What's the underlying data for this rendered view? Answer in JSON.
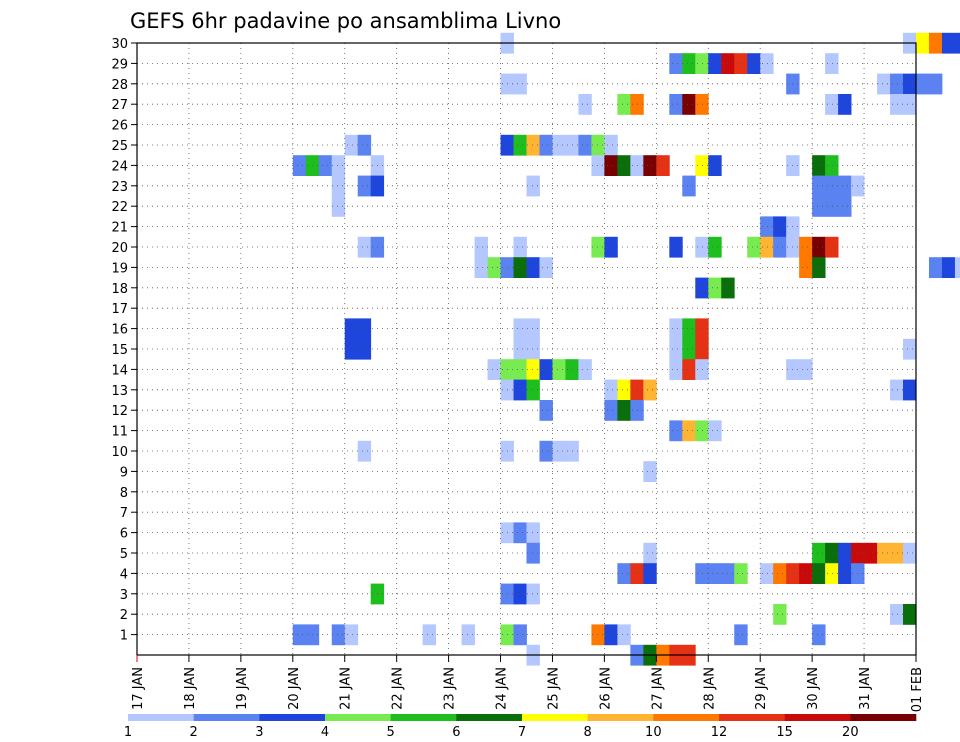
{
  "chart_data": {
    "type": "heatmap",
    "title": "GEFS 6hr padavine po ansamblima Livno",
    "x_ticks": [
      "17 JAN",
      "18 JAN",
      "19 JAN",
      "20 JAN",
      "21 JAN",
      "22 JAN",
      "23 JAN",
      "24 JAN",
      "25 JAN",
      "26 JAN",
      "27 JAN",
      "28 JAN",
      "29 JAN",
      "30 JAN",
      "31 JAN",
      "01 FEB"
    ],
    "y_ticks": [
      "1",
      "2",
      "3",
      "4",
      "5",
      "6",
      "7",
      "8",
      "9",
      "10",
      "11",
      "12",
      "13",
      "14",
      "15",
      "16",
      "17",
      "18",
      "19",
      "20",
      "21",
      "22",
      "23",
      "24",
      "25",
      "26",
      "27",
      "28",
      "29",
      "30"
    ],
    "y_range": [
      0,
      30
    ],
    "grid": true,
    "legend": {
      "placement": "bottom",
      "labels": [
        "1",
        "2",
        "3",
        "4",
        "5",
        "6",
        "7",
        "8",
        "10",
        "12",
        "15",
        "20"
      ],
      "colors": [
        "#b4c8ff",
        "#5a82f0",
        "#1e46dc",
        "#78eb50",
        "#1ebe1e",
        "#0a6e0a",
        "#ffff00",
        "#ffb432",
        "#ff7800",
        "#e63214",
        "#c80a0a",
        "#780000"
      ]
    },
    "cells": [
      [
        24.0,
        30,
        1
      ],
      [
        31.75,
        30,
        1
      ],
      [
        32.0,
        30,
        7
      ],
      [
        32.25,
        30,
        9
      ],
      [
        32.5,
        30,
        3
      ],
      [
        32.75,
        30,
        3
      ],
      [
        27.25,
        29,
        2
      ],
      [
        27.5,
        29,
        5
      ],
      [
        27.75,
        29,
        4
      ],
      [
        28.0,
        29,
        3
      ],
      [
        28.25,
        29,
        11
      ],
      [
        28.5,
        29,
        10
      ],
      [
        28.75,
        29,
        3
      ],
      [
        29.0,
        29,
        1
      ],
      [
        30.25,
        29,
        1
      ],
      [
        24.0,
        28,
        1
      ],
      [
        24.25,
        28,
        1
      ],
      [
        29.5,
        28,
        2
      ],
      [
        31.25,
        28,
        1
      ],
      [
        31.5,
        28,
        2
      ],
      [
        31.75,
        28,
        3
      ],
      [
        32.0,
        28,
        2
      ],
      [
        32.25,
        28,
        2
      ],
      [
        25.5,
        27,
        1
      ],
      [
        26.25,
        27,
        4
      ],
      [
        26.5,
        27,
        9
      ],
      [
        27.25,
        27,
        2
      ],
      [
        27.5,
        27,
        12
      ],
      [
        27.75,
        27,
        9
      ],
      [
        30.25,
        27,
        1
      ],
      [
        30.5,
        27,
        3
      ],
      [
        31.5,
        27,
        1
      ],
      [
        31.75,
        27,
        1
      ],
      [
        21.0,
        25,
        1
      ],
      [
        21.25,
        25,
        2
      ],
      [
        24.0,
        25,
        3
      ],
      [
        24.25,
        25,
        5
      ],
      [
        24.5,
        25,
        8
      ],
      [
        24.75,
        25,
        2
      ],
      [
        25.0,
        25,
        1
      ],
      [
        25.25,
        25,
        1
      ],
      [
        25.5,
        25,
        2
      ],
      [
        25.75,
        25,
        4
      ],
      [
        26.0,
        25,
        1
      ],
      [
        20.0,
        24,
        2
      ],
      [
        20.25,
        24,
        5
      ],
      [
        20.5,
        24,
        2
      ],
      [
        20.75,
        24,
        1
      ],
      [
        21.5,
        24,
        1
      ],
      [
        25.75,
        24,
        1
      ],
      [
        26.0,
        24,
        12
      ],
      [
        26.25,
        24,
        6
      ],
      [
        26.5,
        24,
        1
      ],
      [
        26.75,
        24,
        12
      ],
      [
        27.0,
        24,
        10
      ],
      [
        27.75,
        24,
        7
      ],
      [
        28.0,
        24,
        3
      ],
      [
        29.5,
        24,
        1
      ],
      [
        30.0,
        24,
        6
      ],
      [
        30.25,
        24,
        5
      ],
      [
        20.75,
        23,
        1
      ],
      [
        21.25,
        23,
        2
      ],
      [
        21.5,
        23,
        3
      ],
      [
        24.5,
        23,
        1
      ],
      [
        27.5,
        23,
        2
      ],
      [
        30.0,
        23,
        2
      ],
      [
        30.25,
        23,
        2
      ],
      [
        30.5,
        23,
        2
      ],
      [
        30.75,
        23,
        1
      ],
      [
        20.75,
        22,
        1
      ],
      [
        30.0,
        22,
        2
      ],
      [
        30.25,
        22,
        2
      ],
      [
        30.5,
        22,
        2
      ],
      [
        29.0,
        21,
        2
      ],
      [
        29.25,
        21,
        3
      ],
      [
        29.5,
        21,
        1
      ],
      [
        21.25,
        20,
        1
      ],
      [
        21.5,
        20,
        2
      ],
      [
        23.5,
        20,
        1
      ],
      [
        24.25,
        20,
        1
      ],
      [
        25.75,
        20,
        4
      ],
      [
        26.0,
        20,
        3
      ],
      [
        27.25,
        20,
        3
      ],
      [
        27.75,
        20,
        1
      ],
      [
        28.0,
        20,
        5
      ],
      [
        28.75,
        20,
        4
      ],
      [
        29.0,
        20,
        8
      ],
      [
        29.25,
        20,
        2
      ],
      [
        29.5,
        20,
        1
      ],
      [
        29.75,
        20,
        9
      ],
      [
        30.0,
        20,
        12
      ],
      [
        30.25,
        20,
        10
      ],
      [
        23.5,
        19,
        1
      ],
      [
        23.75,
        19,
        4
      ],
      [
        24.0,
        19,
        2
      ],
      [
        24.25,
        19,
        6
      ],
      [
        24.5,
        19,
        3
      ],
      [
        24.75,
        19,
        1
      ],
      [
        29.75,
        19,
        9
      ],
      [
        30.0,
        19,
        6
      ],
      [
        32.25,
        19,
        2
      ],
      [
        32.5,
        19,
        3
      ],
      [
        32.75,
        19,
        1
      ],
      [
        27.75,
        18,
        3
      ],
      [
        28.0,
        18,
        4
      ],
      [
        28.25,
        18,
        6
      ],
      [
        21.0,
        16,
        3
      ],
      [
        21.25,
        16,
        3
      ],
      [
        24.25,
        16,
        1
      ],
      [
        24.5,
        16,
        1
      ],
      [
        27.25,
        16,
        1
      ],
      [
        27.5,
        16,
        5
      ],
      [
        27.75,
        16,
        10
      ],
      [
        21.0,
        15,
        3
      ],
      [
        21.25,
        15,
        3
      ],
      [
        24.25,
        15,
        1
      ],
      [
        24.5,
        15,
        1
      ],
      [
        27.25,
        15,
        1
      ],
      [
        27.5,
        15,
        5
      ],
      [
        27.75,
        15,
        10
      ],
      [
        31.75,
        15,
        1
      ],
      [
        23.75,
        14,
        1
      ],
      [
        24.0,
        14,
        4
      ],
      [
        24.25,
        14,
        4
      ],
      [
        24.5,
        14,
        7
      ],
      [
        24.75,
        14,
        3
      ],
      [
        25.0,
        14,
        4
      ],
      [
        25.25,
        14,
        5
      ],
      [
        25.5,
        14,
        1
      ],
      [
        27.25,
        14,
        1
      ],
      [
        27.5,
        14,
        10
      ],
      [
        27.75,
        14,
        1
      ],
      [
        29.5,
        14,
        1
      ],
      [
        29.75,
        14,
        1
      ],
      [
        24.0,
        13,
        1
      ],
      [
        24.25,
        13,
        3
      ],
      [
        24.5,
        13,
        5
      ],
      [
        26.0,
        13,
        1
      ],
      [
        26.25,
        13,
        7
      ],
      [
        26.5,
        13,
        10
      ],
      [
        26.75,
        13,
        8
      ],
      [
        31.5,
        13,
        1
      ],
      [
        31.75,
        13,
        3
      ],
      [
        24.75,
        12,
        2
      ],
      [
        26.0,
        12,
        2
      ],
      [
        26.25,
        12,
        6
      ],
      [
        26.5,
        12,
        2
      ],
      [
        27.25,
        11,
        2
      ],
      [
        27.5,
        11,
        8
      ],
      [
        27.75,
        11,
        4
      ],
      [
        28.0,
        11,
        1
      ],
      [
        21.25,
        10,
        1
      ],
      [
        24.0,
        10,
        1
      ],
      [
        24.75,
        10,
        2
      ],
      [
        25.0,
        10,
        1
      ],
      [
        25.25,
        10,
        1
      ],
      [
        26.75,
        9,
        1
      ],
      [
        24.0,
        6,
        1
      ],
      [
        24.25,
        6,
        2
      ],
      [
        24.5,
        6,
        1
      ],
      [
        24.5,
        5,
        2
      ],
      [
        26.75,
        5,
        1
      ],
      [
        30.0,
        5,
        5
      ],
      [
        30.25,
        5,
        6
      ],
      [
        30.5,
        5,
        3
      ],
      [
        30.75,
        5,
        11
      ],
      [
        31.0,
        5,
        11
      ],
      [
        31.25,
        5,
        8
      ],
      [
        31.5,
        5,
        8
      ],
      [
        31.75,
        5,
        1
      ],
      [
        26.25,
        4,
        2
      ],
      [
        26.5,
        4,
        10
      ],
      [
        26.75,
        4,
        3
      ],
      [
        27.75,
        4,
        2
      ],
      [
        28.0,
        4,
        2
      ],
      [
        28.25,
        4,
        2
      ],
      [
        28.5,
        4,
        4
      ],
      [
        29.0,
        4,
        1
      ],
      [
        29.25,
        4,
        9
      ],
      [
        29.5,
        4,
        10
      ],
      [
        29.75,
        4,
        11
      ],
      [
        30.0,
        4,
        6
      ],
      [
        30.25,
        4,
        7
      ],
      [
        30.5,
        4,
        3
      ],
      [
        30.75,
        4,
        2
      ],
      [
        21.5,
        3,
        5
      ],
      [
        24.0,
        3,
        2
      ],
      [
        24.25,
        3,
        3
      ],
      [
        24.5,
        3,
        1
      ],
      [
        29.25,
        2,
        4
      ],
      [
        31.5,
        2,
        1
      ],
      [
        31.75,
        2,
        6
      ],
      [
        20.0,
        1,
        2
      ],
      [
        20.25,
        1,
        2
      ],
      [
        20.75,
        1,
        2
      ],
      [
        21.0,
        1,
        1
      ],
      [
        22.5,
        1,
        1
      ],
      [
        23.25,
        1,
        1
      ],
      [
        24.0,
        1,
        4
      ],
      [
        24.25,
        1,
        2
      ],
      [
        25.75,
        1,
        9
      ],
      [
        26.0,
        1,
        3
      ],
      [
        26.25,
        1,
        1
      ],
      [
        28.5,
        1,
        2
      ],
      [
        30.0,
        1,
        2
      ],
      [
        24.5,
        0,
        1
      ],
      [
        26.5,
        0,
        2
      ],
      [
        26.75,
        0,
        6
      ],
      [
        27.0,
        0,
        9
      ],
      [
        27.25,
        0,
        10
      ],
      [
        27.5,
        0,
        10
      ]
    ]
  }
}
